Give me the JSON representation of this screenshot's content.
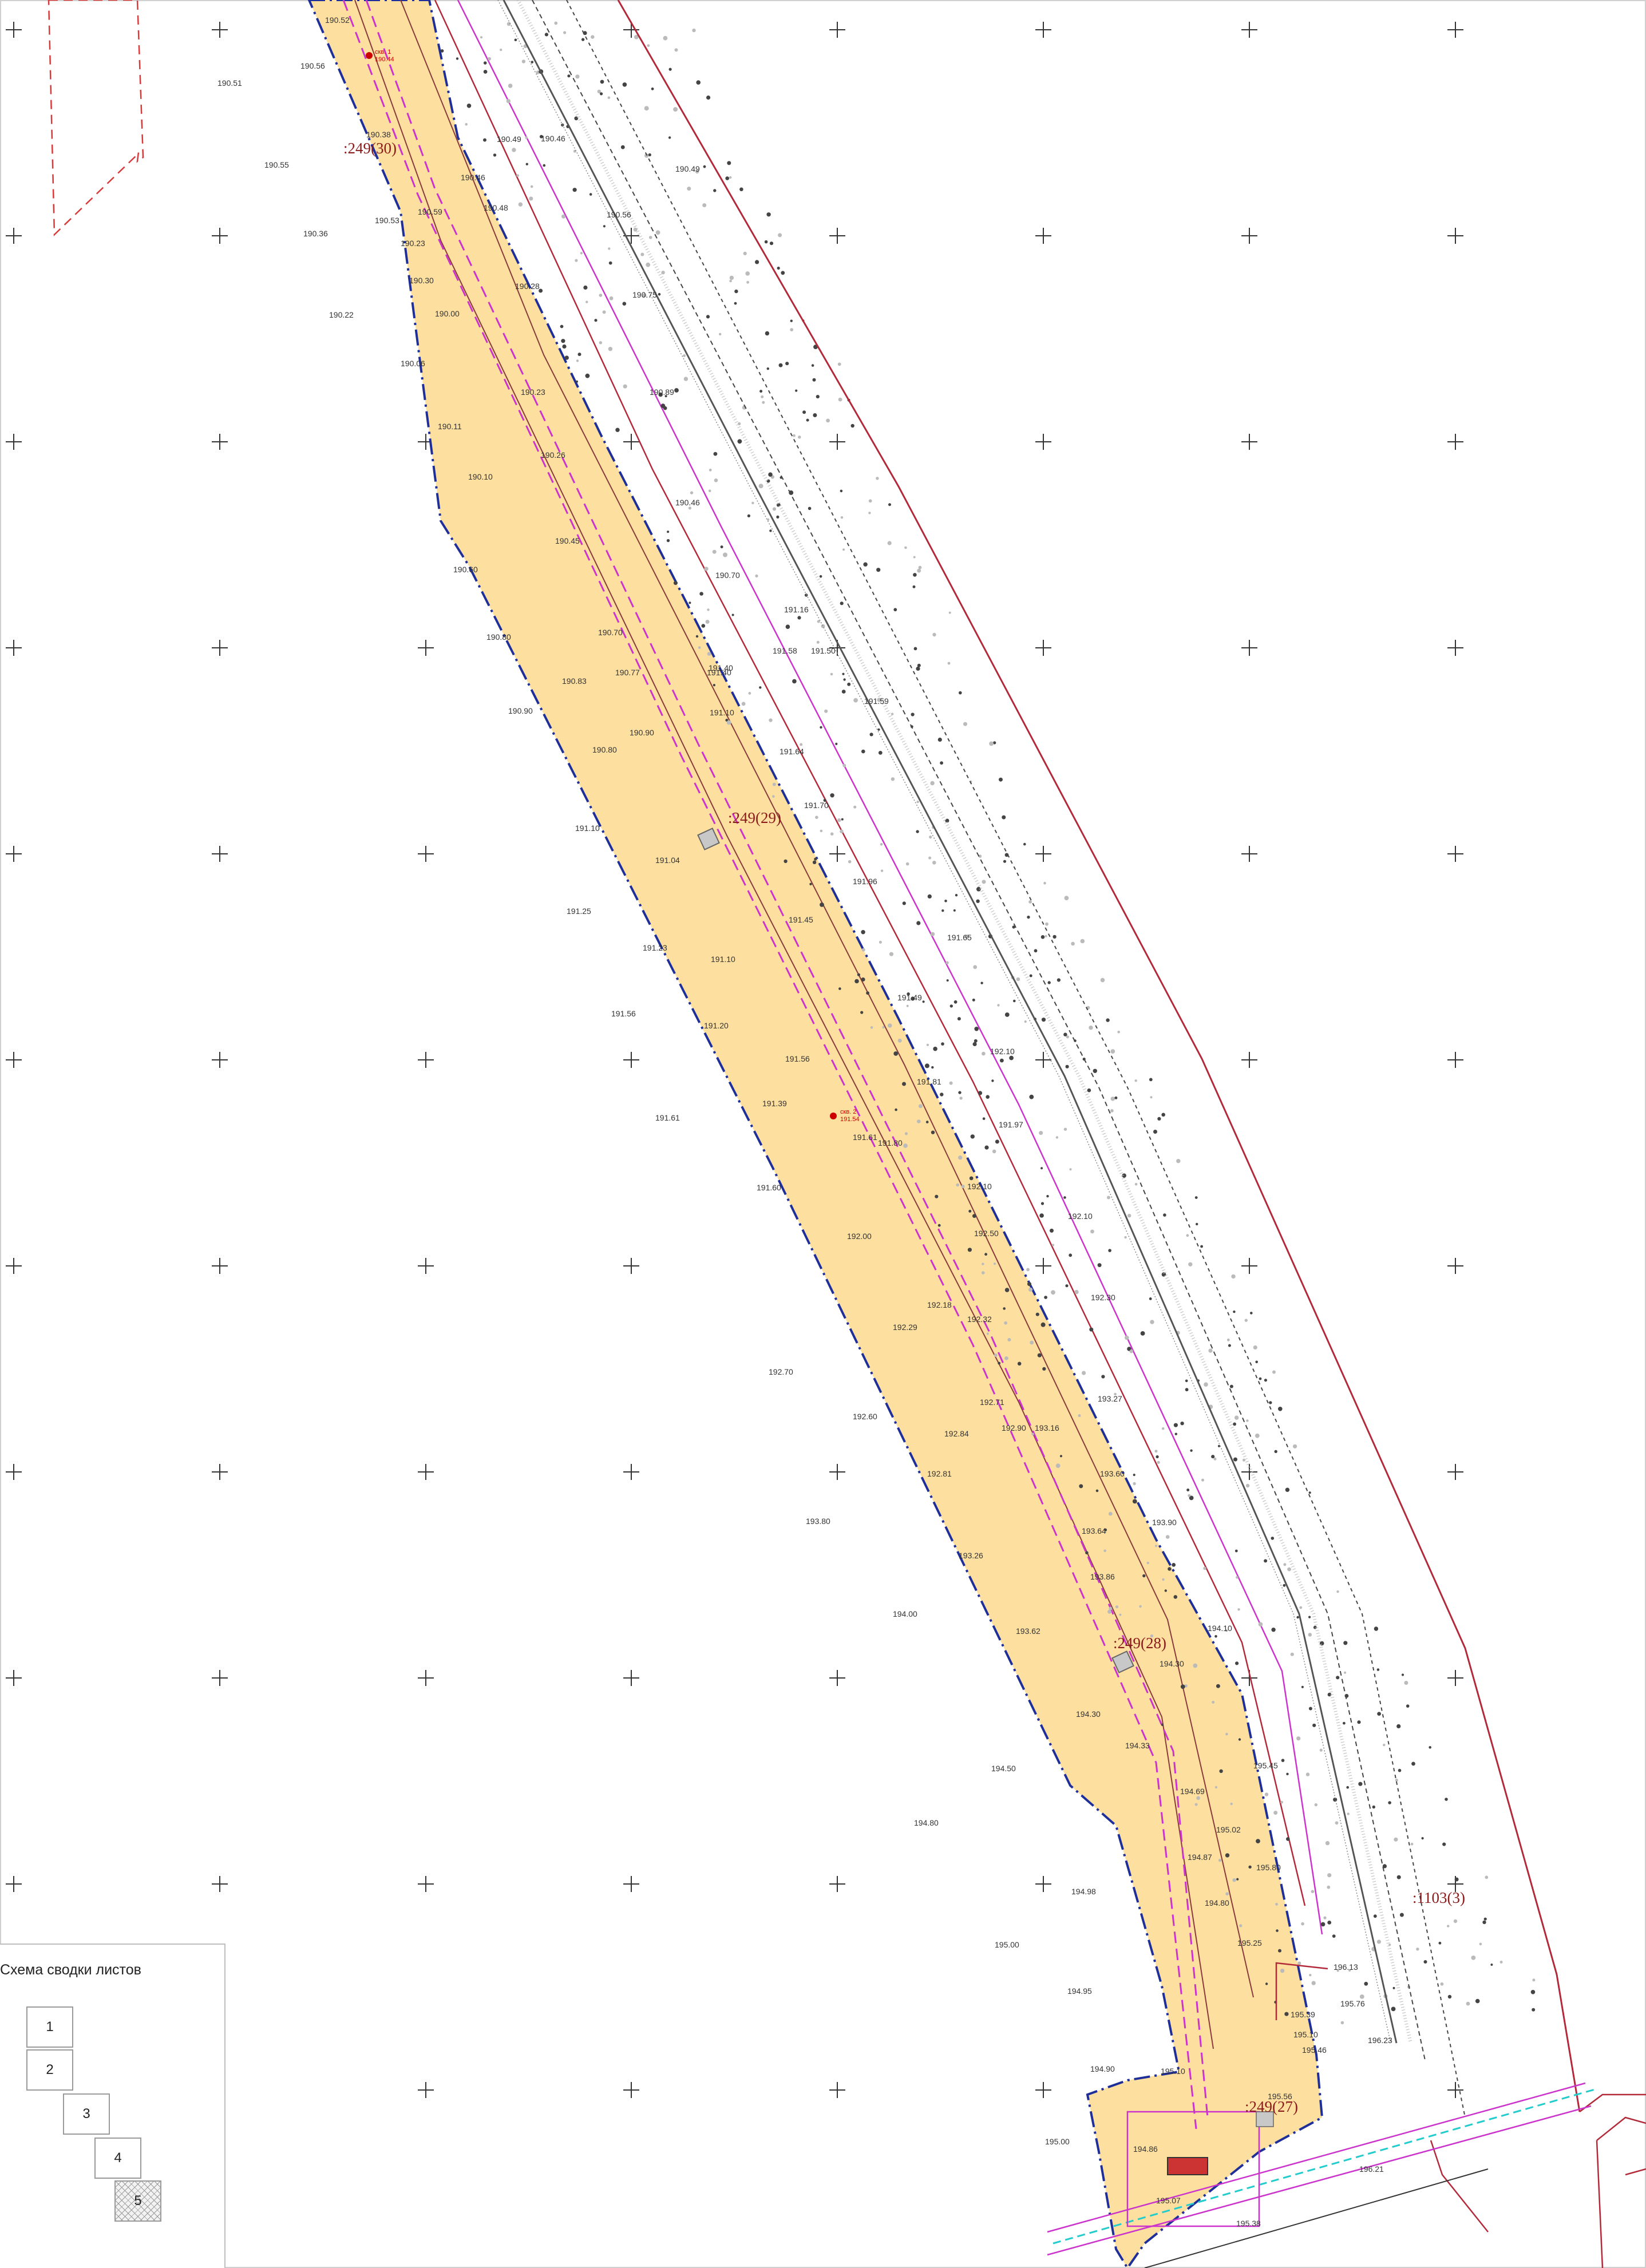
{
  "colors": {
    "strip_fill": "#fddfa0",
    "strip_border": "#1f2f9a",
    "red_line": "#b22a3a",
    "magenta_line": "#cc33cc",
    "parcel_text": "#8b1a1a",
    "pipe_cyan": "#22cccc",
    "well_marker": "#cc0000"
  },
  "parcels": [
    {
      "id": "p30",
      "label": ":249(30)"
    },
    {
      "id": "p29",
      "label": ":249(29)"
    },
    {
      "id": "p28",
      "label": ":249(28)"
    },
    {
      "id": "p27",
      "label": ":249(27)"
    },
    {
      "id": "p1103",
      "label": ":1103(3)"
    }
  ],
  "wells": [
    {
      "id": "w1",
      "label": "скв. 1",
      "value": "190.44"
    },
    {
      "id": "w2",
      "label": "скв. 2",
      "value": "191.54"
    }
  ],
  "elevations": [
    "190.52",
    "190.56",
    "190.51",
    "190.55",
    "190.36",
    "190.22",
    "190.38",
    "190.23",
    "190.53",
    "190.30",
    "190.00",
    "190.06",
    "190.11",
    "190.10",
    "190.60",
    "190.80",
    "190.90",
    "190.83",
    "190.80",
    "191.10",
    "191.25",
    "191.56",
    "191.61",
    "191.04",
    "191.23",
    "191.10",
    "191.20",
    "191.39",
    "191.60",
    "192.00",
    "192.29",
    "192.70",
    "192.60",
    "193.80",
    "192.84",
    "192.81",
    "193.26",
    "193.62",
    "194.00",
    "194.30",
    "194.50",
    "194.80",
    "194.98",
    "195.00",
    "194.95",
    "194.90",
    "195.10",
    "195.00",
    "194.86",
    "195.07",
    "190.49",
    "190.48",
    "190.46",
    "190.28",
    "190.23",
    "190.26",
    "190.45",
    "190.70",
    "190.77",
    "190.90",
    "191.10",
    "191.45",
    "191.56",
    "191.61",
    "191.80",
    "192.18",
    "192.32",
    "192.71",
    "192.90",
    "193.16",
    "193.60",
    "193.64",
    "193.86",
    "194.30",
    "194.33",
    "194.69",
    "195.02",
    "194.87",
    "194.80",
    "190.59",
    "190.89",
    "190.46",
    "190.70",
    "191.40",
    "191.58",
    "191.64",
    "191.70",
    "191.96",
    "191.49",
    "191.81",
    "191.97",
    "192.10",
    "192.50",
    "192.10",
    "192.30",
    "193.27",
    "193.90",
    "194.10",
    "195.45",
    "195.80",
    "195.25",
    "196.13",
    "195.76",
    "195.39",
    "196.23",
    "196.21",
    "195.56",
    "195.38",
    "195.46",
    "195.10",
    "191.65",
    "192.10",
    "191.50",
    "191.40",
    "190.46",
    "190.49",
    "190.56",
    "190.75",
    "191.59",
    "191.16"
  ],
  "legend": {
    "title": "Схема сводки листов",
    "sheets": [
      "1",
      "2",
      "3",
      "4",
      "5"
    ],
    "active_sheet": "5"
  }
}
